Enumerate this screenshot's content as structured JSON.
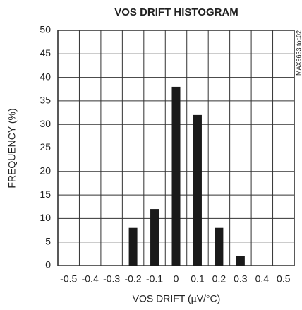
{
  "chart_data": {
    "type": "bar",
    "title": "VOS DRIFT HISTOGRAM",
    "xlabel": "VOS DRIFT (µV/°C)",
    "ylabel": "FREQUENCY (%)",
    "annotation": "MAX9633 toc02",
    "categories": [
      "-0.5",
      "-0.4",
      "-0.3",
      "-0.2",
      "-0.1",
      "0",
      "0.1",
      "0.2",
      "0.3",
      "0.4",
      "0.5"
    ],
    "values": [
      0,
      0,
      0,
      8,
      12,
      38,
      32,
      8,
      2,
      0,
      0
    ],
    "color": "#1a1a1a",
    "ylim": [
      0,
      50
    ],
    "yticks": [
      0,
      5,
      10,
      15,
      20,
      25,
      30,
      35,
      40,
      45,
      50
    ],
    "grid": true
  }
}
